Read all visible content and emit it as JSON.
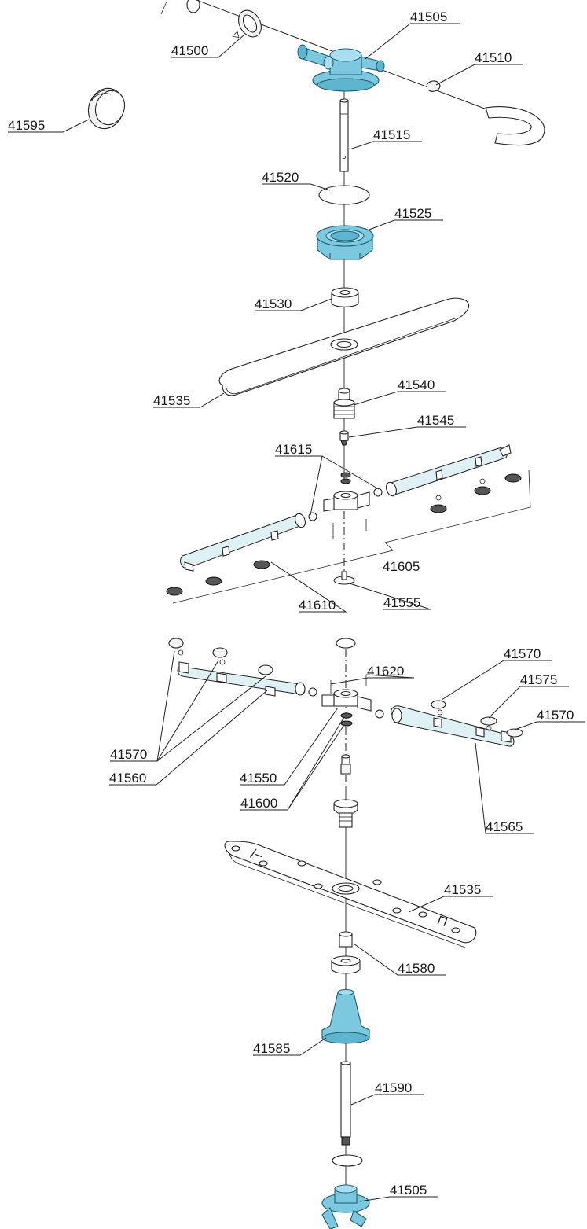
{
  "labels": [
    {
      "id": "41505_top",
      "text": "41505"
    },
    {
      "id": "41500",
      "text": "41500"
    },
    {
      "id": "41510",
      "text": "41510"
    },
    {
      "id": "41595",
      "text": "41595"
    },
    {
      "id": "41515",
      "text": "41515"
    },
    {
      "id": "41520",
      "text": "41520"
    },
    {
      "id": "41525",
      "text": "41525"
    },
    {
      "id": "41530",
      "text": "41530"
    },
    {
      "id": "41535_top",
      "text": "41535"
    },
    {
      "id": "41540",
      "text": "41540"
    },
    {
      "id": "41545",
      "text": "41545"
    },
    {
      "id": "41615",
      "text": "41615"
    },
    {
      "id": "41605",
      "text": "41605"
    },
    {
      "id": "41610",
      "text": "41610"
    },
    {
      "id": "41555",
      "text": "41555"
    },
    {
      "id": "41570_a",
      "text": "41570"
    },
    {
      "id": "41620",
      "text": "41620"
    },
    {
      "id": "41575",
      "text": "41575"
    },
    {
      "id": "41570_b",
      "text": "41570"
    },
    {
      "id": "41570_c",
      "text": "41570"
    },
    {
      "id": "41550",
      "text": "41550"
    },
    {
      "id": "41560",
      "text": "41560"
    },
    {
      "id": "41600",
      "text": "41600"
    },
    {
      "id": "41565",
      "text": "41565"
    },
    {
      "id": "41535_bottom",
      "text": "41535"
    },
    {
      "id": "41580",
      "text": "41580"
    },
    {
      "id": "41585",
      "text": "41585"
    },
    {
      "id": "41590",
      "text": "41590"
    },
    {
      "id": "41505_bottom",
      "text": "41505"
    }
  ],
  "arm_marks": [
    "/−",
    "⊓"
  ],
  "colors": {
    "highlight": "#7cc8de",
    "outline": "#222222",
    "pale": "#dff1f5"
  }
}
